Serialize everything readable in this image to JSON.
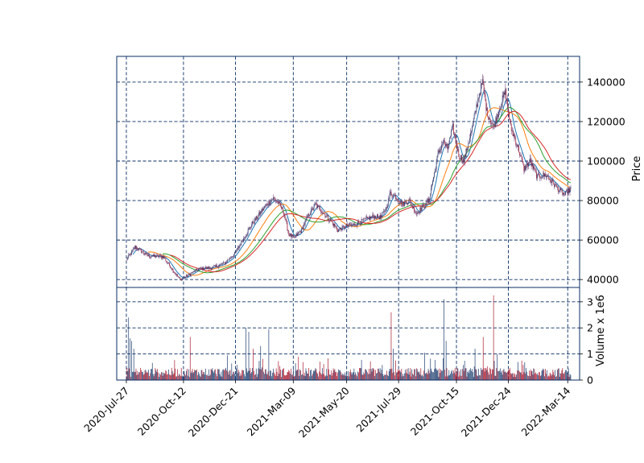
{
  "chart_data": {
    "type": "candlestick",
    "x_ticks": [
      "2020-Jul-27",
      "2020-Oct-12",
      "2020-Dec-21",
      "2021-Mar-09",
      "2021-May-20",
      "2021-Jul-29",
      "2021-Oct-15",
      "2021-Dec-24",
      "2022-Mar-14"
    ],
    "x_range": [
      "2020-Jul-14",
      "2022-Mar-30"
    ],
    "price_panel": {
      "ylabel": "Price",
      "ylim": [
        36000,
        153000
      ],
      "yticks": [
        40000,
        60000,
        80000,
        100000,
        120000,
        140000
      ],
      "ytick_labels": [
        "40000",
        "60000",
        "80000",
        "100000",
        "120000",
        "140000"
      ],
      "grid": true
    },
    "volume_panel": {
      "ylabel": "Volume x 1e6",
      "ylim": [
        0,
        3.55
      ],
      "yticks": [
        0,
        1,
        2,
        3
      ],
      "ytick_labels": [
        "0",
        "1",
        "2",
        "3"
      ],
      "grid": true
    },
    "price_anchors": [
      [
        "2020-07-27",
        50000
      ],
      [
        "2020-08-08",
        56500
      ],
      [
        "2020-08-25",
        52000
      ],
      [
        "2020-09-15",
        51500
      ],
      [
        "2020-10-01",
        43000
      ],
      [
        "2020-10-08",
        40000
      ],
      [
        "2020-10-20",
        42500
      ],
      [
        "2020-11-02",
        45500
      ],
      [
        "2020-11-20",
        46000
      ],
      [
        "2020-12-05",
        48000
      ],
      [
        "2020-12-20",
        53000
      ],
      [
        "2020-12-31",
        60000
      ],
      [
        "2021-01-12",
        68000
      ],
      [
        "2021-01-24",
        74000
      ],
      [
        "2021-02-01",
        78000
      ],
      [
        "2021-02-10",
        81000
      ],
      [
        "2021-02-17",
        79000
      ],
      [
        "2021-02-24",
        74000
      ],
      [
        "2021-03-03",
        63000
      ],
      [
        "2021-03-10",
        61000
      ],
      [
        "2021-03-20",
        65000
      ],
      [
        "2021-03-30",
        73000
      ],
      [
        "2021-04-08",
        78000
      ],
      [
        "2021-04-18",
        74000
      ],
      [
        "2021-04-28",
        70000
      ],
      [
        "2021-05-08",
        65000
      ],
      [
        "2021-05-20",
        67000
      ],
      [
        "2021-06-01",
        68000
      ],
      [
        "2021-06-12",
        70000
      ],
      [
        "2021-06-25",
        72000
      ],
      [
        "2021-07-05",
        71500
      ],
      [
        "2021-07-12",
        76000
      ],
      [
        "2021-07-18",
        84000
      ],
      [
        "2021-07-25",
        82000
      ],
      [
        "2021-08-03",
        78000
      ],
      [
        "2021-08-12",
        80000
      ],
      [
        "2021-08-22",
        73500
      ],
      [
        "2021-08-31",
        77000
      ],
      [
        "2021-09-08",
        80000
      ],
      [
        "2021-09-14",
        92000
      ],
      [
        "2021-09-20",
        103000
      ],
      [
        "2021-09-27",
        110000
      ],
      [
        "2021-10-03",
        106000
      ],
      [
        "2021-10-10",
        117000
      ],
      [
        "2021-10-18",
        103000
      ],
      [
        "2021-10-25",
        100000
      ],
      [
        "2021-11-04",
        115000
      ],
      [
        "2021-11-14",
        133000
      ],
      [
        "2021-11-19",
        140000
      ],
      [
        "2021-11-25",
        125000
      ],
      [
        "2021-12-04",
        117000
      ],
      [
        "2021-12-13",
        128000
      ],
      [
        "2021-12-20",
        135000
      ],
      [
        "2021-12-27",
        117000
      ],
      [
        "2022-01-05",
        108000
      ],
      [
        "2022-01-14",
        96000
      ],
      [
        "2022-01-22",
        100000
      ],
      [
        "2022-02-01",
        92000
      ],
      [
        "2022-02-12",
        93000
      ],
      [
        "2022-02-22",
        89000
      ],
      [
        "2022-03-03",
        85000
      ],
      [
        "2022-03-10",
        83000
      ],
      [
        "2022-03-18",
        86000
      ]
    ],
    "volume_spikes": [
      [
        "2020-07-30",
        2.4
      ],
      [
        "2020-08-01",
        1.6
      ],
      [
        "2020-08-03",
        1.5
      ],
      [
        "2020-08-06",
        1.2
      ],
      [
        "2020-10-21",
        1.65
      ],
      [
        "2020-12-10",
        0.95
      ],
      [
        "2021-01-04",
        2.0
      ],
      [
        "2021-01-08",
        1.85
      ],
      [
        "2021-01-14",
        1.2
      ],
      [
        "2021-01-24",
        1.3
      ],
      [
        "2021-02-04",
        1.95
      ],
      [
        "2021-07-19",
        2.6
      ],
      [
        "2021-07-22",
        1.2
      ],
      [
        "2021-09-02",
        1.05
      ],
      [
        "2021-09-28",
        3.1
      ],
      [
        "2021-10-01",
        1.5
      ],
      [
        "2021-11-09",
        1.2
      ],
      [
        "2021-11-20",
        1.65
      ],
      [
        "2021-12-04",
        3.25
      ],
      [
        "2021-12-09",
        1.0
      ]
    ],
    "series": [
      {
        "type": "moving-average",
        "color": "#1f77b4",
        "window": 10
      },
      {
        "type": "moving-average",
        "color": "#ff7f0e",
        "window": 30
      },
      {
        "type": "moving-average",
        "color": "#2ca02c",
        "window": 50
      },
      {
        "type": "moving-average",
        "color": "#d62728",
        "window": 60
      }
    ],
    "colors": {
      "up": "#0b2e63",
      "down": "#a3081f",
      "grid": "#0b2e63",
      "frame": "#0b2e63",
      "wick": "#7a5a8a"
    }
  }
}
